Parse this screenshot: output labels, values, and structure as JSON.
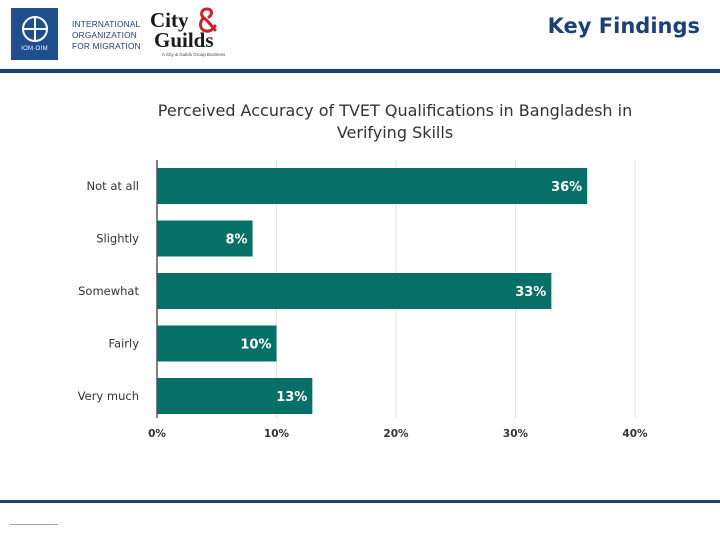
{
  "header": {
    "page_title": "Key Findings",
    "iom_logo_code": "IOM·OIM",
    "iom_name_lines": [
      "INTERNATIONAL",
      "ORGANIZATION",
      "FOR MIGRATION"
    ],
    "cg_line1": "City",
    "cg_line2": "Guilds",
    "cg_tagline": "A City & Guilds Group Business"
  },
  "colors": {
    "bar": "#067068",
    "rule": "#1e3f79",
    "title": "#1c3f78"
  },
  "chart_data": {
    "type": "bar",
    "orientation": "horizontal",
    "title": "Perceived Accuracy of TVET Qualifications in Bangladesh in Verifying Skills",
    "categories": [
      "Not at all",
      "Slightly",
      "Somewhat",
      "Fairly",
      "Very much"
    ],
    "values": [
      36,
      8,
      33,
      10,
      13
    ],
    "value_labels": [
      "36%",
      "8%",
      "33%",
      "10%",
      "13%"
    ],
    "xlim": [
      0,
      40
    ],
    "ticks": [
      0,
      10,
      20,
      30,
      40
    ],
    "tick_labels": [
      "0%",
      "10%",
      "20%",
      "30%",
      "40%"
    ],
    "grid": true,
    "legend": "none"
  }
}
